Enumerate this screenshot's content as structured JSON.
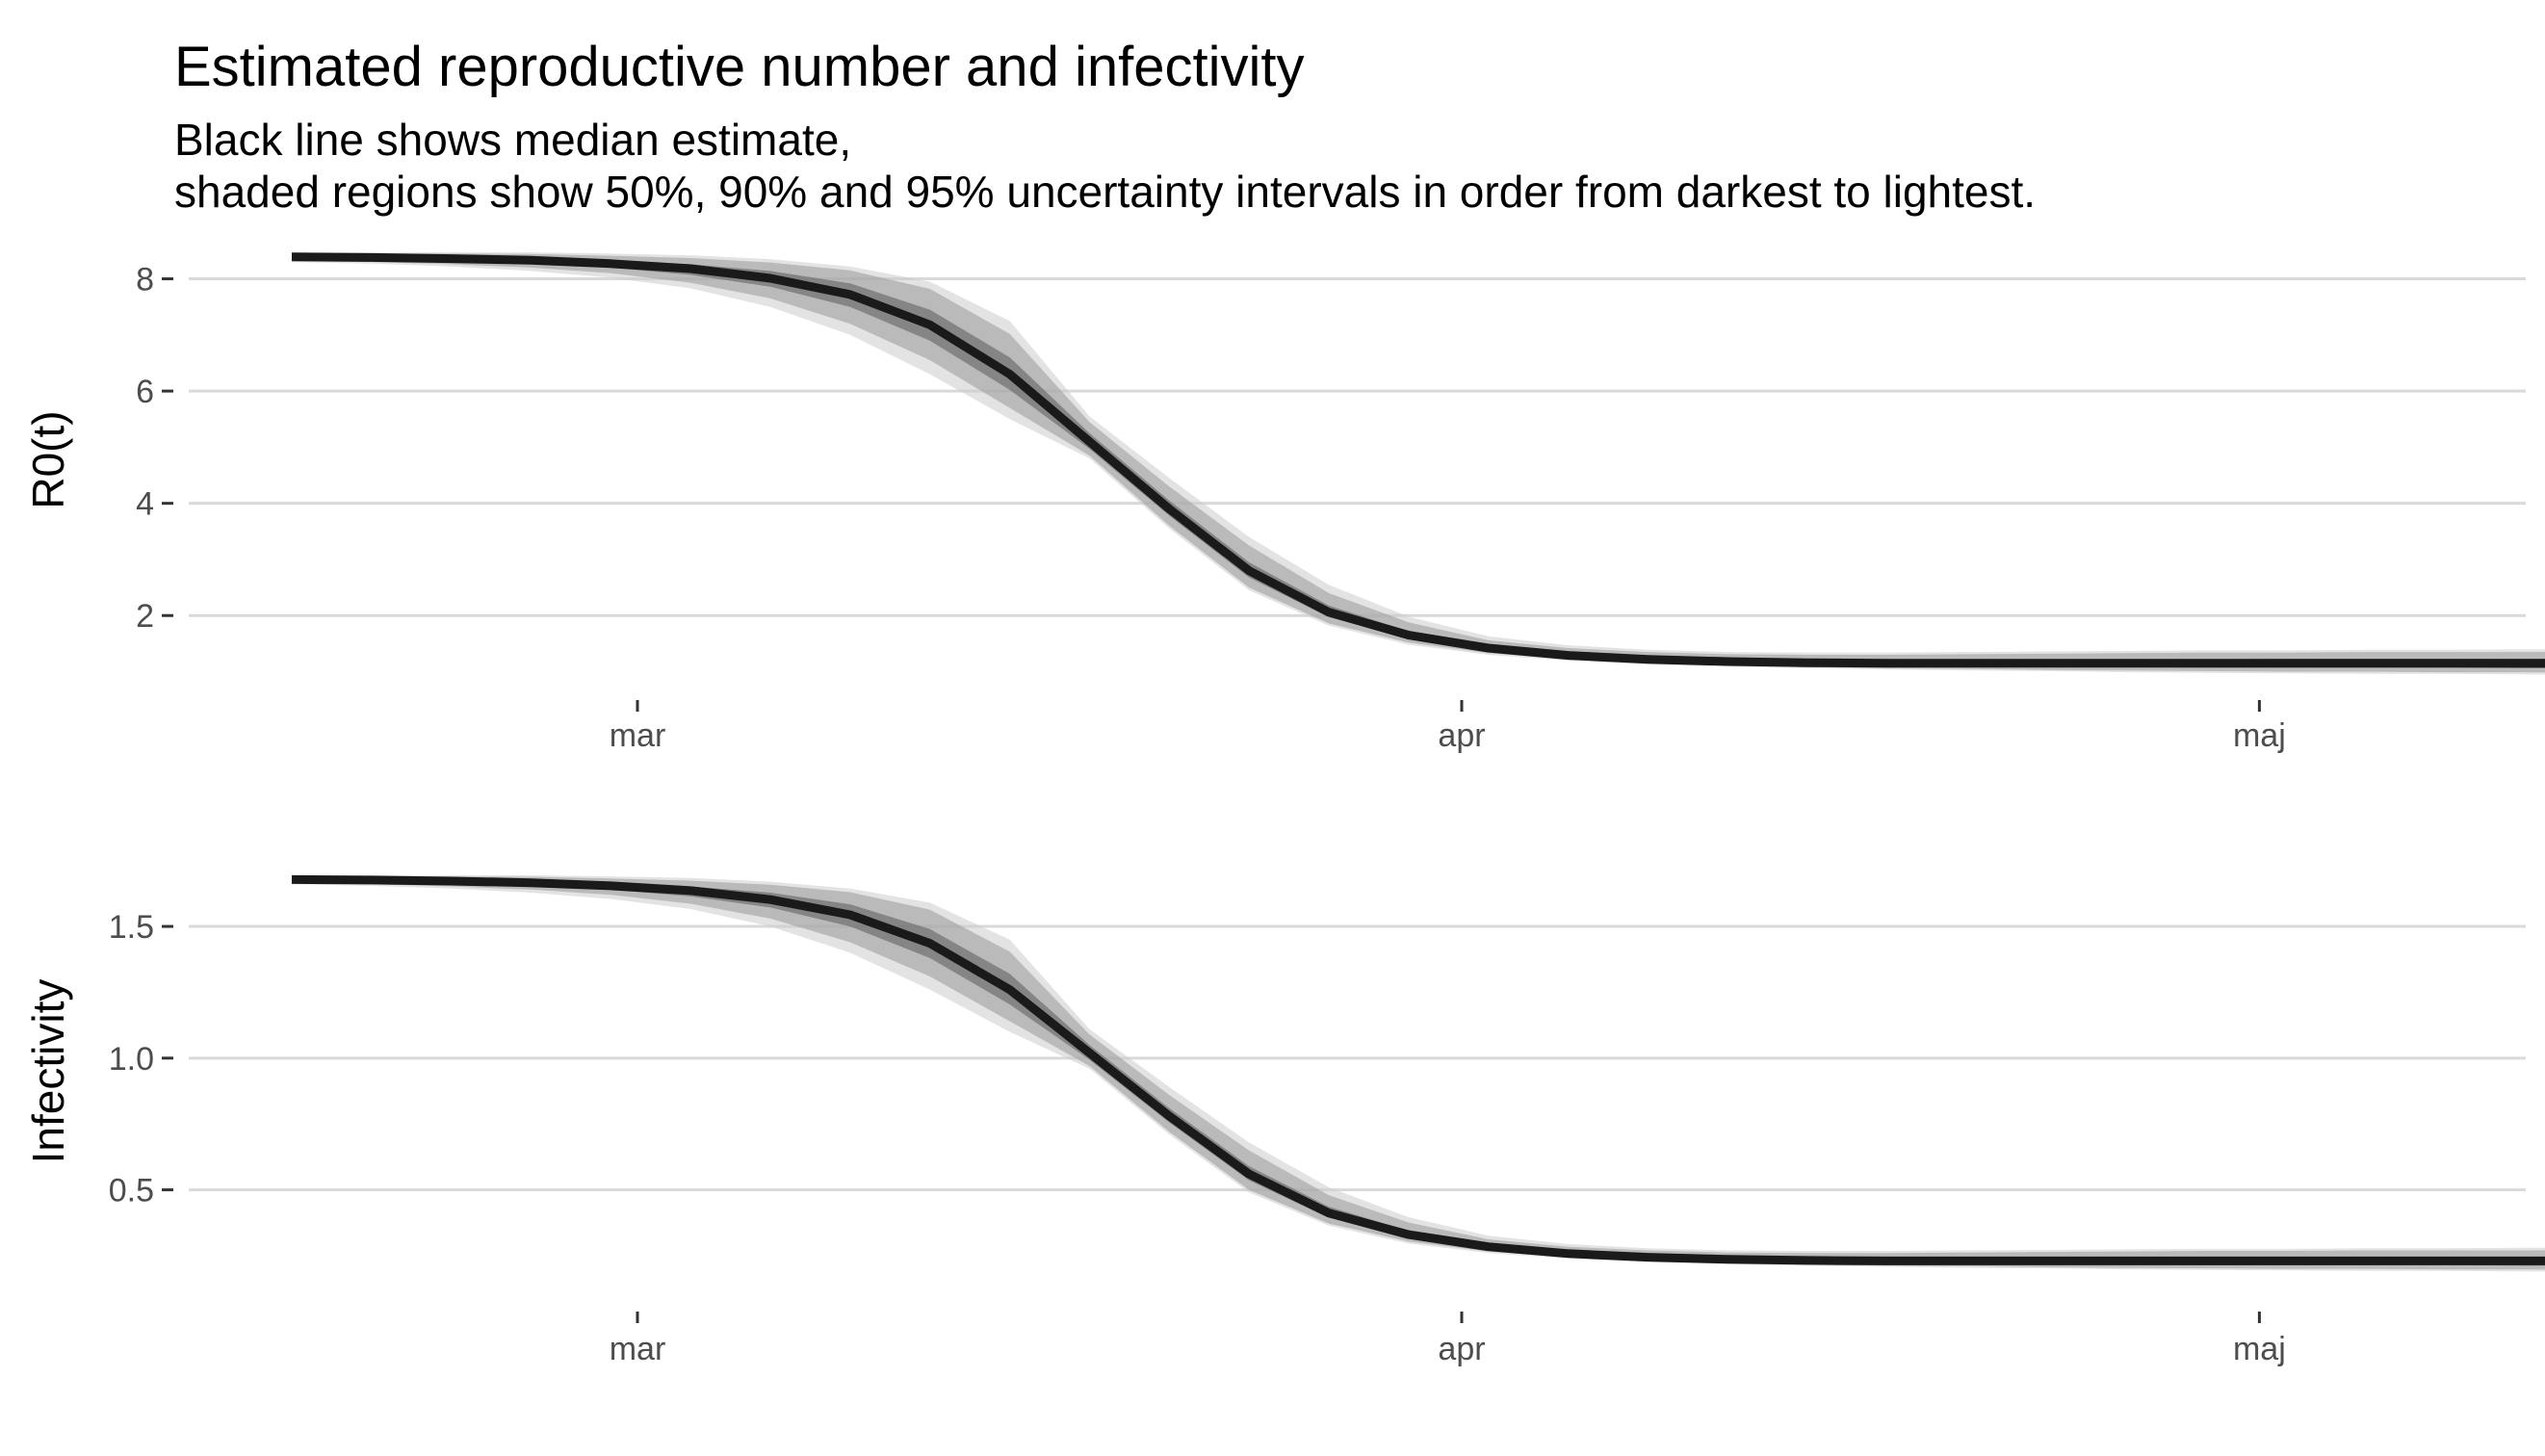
{
  "chart_data": {
    "title": "Estimated reproductive number and infectivity",
    "subtitle": [
      "Black line shows median estimate,",
      "shaded regions show 50%, 90% and 95% uncertainty intervals in order from darkest to lightest."
    ],
    "type": "area",
    "colors": {
      "median": "#1a1a1a",
      "band_50": "#595959",
      "band_90": "#999999",
      "band_95": "#cccccc",
      "grid": "#d9d9d9",
      "tick_text": "#4d4d4d"
    },
    "x_ticks": [
      "mar",
      "apr",
      "maj"
    ],
    "grid": true,
    "panels": [
      {
        "ylabel": "R0(t)",
        "yticks": [
          2,
          4,
          6,
          8
        ],
        "ylim": [
          0.7,
          8.85
        ],
        "x_day": [
          -13,
          -10,
          -7,
          -4,
          -1,
          2,
          5,
          8,
          11,
          14,
          17,
          20,
          23,
          26,
          29,
          32,
          35,
          38,
          41,
          44,
          47,
          50,
          53,
          56,
          59,
          62,
          65,
          68,
          71,
          74,
          77,
          80,
          83,
          86,
          89,
          92,
          95,
          98,
          101,
          104
        ],
        "median": [
          8.39,
          8.38,
          8.36,
          8.33,
          8.27,
          8.18,
          8.01,
          7.72,
          7.18,
          6.3,
          5.1,
          3.9,
          2.8,
          2.06,
          1.65,
          1.42,
          1.29,
          1.22,
          1.18,
          1.16,
          1.15,
          1.15,
          1.15,
          1.15,
          1.15,
          1.15,
          1.15,
          1.15,
          1.15,
          1.15,
          1.15,
          1.15,
          1.15,
          1.15,
          1.15,
          1.15,
          1.15,
          1.15,
          1.15,
          1.15
        ],
        "band_50_lo": [
          8.36,
          8.35,
          8.32,
          8.28,
          8.2,
          8.07,
          7.86,
          7.5,
          6.9,
          6.02,
          4.97,
          3.78,
          2.68,
          1.97,
          1.6,
          1.38,
          1.26,
          1.19,
          1.15,
          1.13,
          1.11,
          1.1,
          1.09,
          1.08,
          1.07,
          1.07,
          1.07,
          1.07,
          1.06,
          1.06,
          1.06,
          1.06,
          1.06,
          1.06,
          1.06,
          1.05,
          1.05,
          1.05,
          1.05,
          1.05
        ],
        "band_50_hi": [
          8.42,
          8.41,
          8.4,
          8.38,
          8.33,
          8.26,
          8.14,
          7.92,
          7.45,
          6.6,
          5.25,
          4.05,
          2.95,
          2.18,
          1.72,
          1.46,
          1.33,
          1.26,
          1.22,
          1.2,
          1.2,
          1.21,
          1.21,
          1.22,
          1.22,
          1.23,
          1.23,
          1.23,
          1.23,
          1.24,
          1.24,
          1.24,
          1.24,
          1.24,
          1.24,
          1.24,
          1.24,
          1.24,
          1.24,
          1.24
        ],
        "band_90_lo": [
          8.32,
          8.3,
          8.26,
          8.2,
          8.1,
          7.93,
          7.65,
          7.2,
          6.55,
          5.7,
          4.85,
          3.6,
          2.5,
          1.86,
          1.52,
          1.33,
          1.22,
          1.15,
          1.11,
          1.08,
          1.06,
          1.05,
          1.03,
          1.02,
          1.01,
          1.0,
          1.0,
          0.99,
          0.99,
          0.98,
          0.98,
          0.98,
          0.97,
          0.97,
          0.97,
          0.97,
          0.96,
          0.96,
          0.96,
          0.96
        ],
        "band_90_hi": [
          8.45,
          8.45,
          8.45,
          8.44,
          8.41,
          8.37,
          8.29,
          8.15,
          7.82,
          7.02,
          5.45,
          4.3,
          3.25,
          2.4,
          1.88,
          1.56,
          1.42,
          1.35,
          1.31,
          1.3,
          1.3,
          1.31,
          1.32,
          1.33,
          1.34,
          1.34,
          1.35,
          1.35,
          1.35,
          1.36,
          1.36,
          1.36,
          1.36,
          1.36,
          1.36,
          1.37,
          1.37,
          1.37,
          1.37,
          1.37
        ],
        "band_95_lo": [
          8.3,
          8.27,
          8.22,
          8.14,
          8.02,
          7.83,
          7.5,
          7.0,
          6.3,
          5.5,
          4.8,
          3.55,
          2.45,
          1.82,
          1.48,
          1.3,
          1.2,
          1.13,
          1.09,
          1.06,
          1.04,
          1.02,
          1.01,
          0.99,
          0.98,
          0.97,
          0.96,
          0.96,
          0.95,
          0.95,
          0.95,
          0.94,
          0.94,
          0.94,
          0.94,
          0.93,
          0.93,
          0.93,
          0.93,
          0.93
        ],
        "band_95_hi": [
          8.47,
          8.47,
          8.47,
          8.47,
          8.45,
          8.42,
          8.35,
          8.22,
          7.95,
          7.25,
          5.55,
          4.45,
          3.4,
          2.55,
          1.98,
          1.63,
          1.47,
          1.39,
          1.35,
          1.34,
          1.34,
          1.35,
          1.36,
          1.37,
          1.38,
          1.38,
          1.39,
          1.39,
          1.4,
          1.4,
          1.4,
          1.4,
          1.4,
          1.41,
          1.41,
          1.41,
          1.41,
          1.41,
          1.41,
          1.41
        ]
      },
      {
        "ylabel": "Infectivity",
        "yticks": [
          0.5,
          1.0,
          1.5
        ],
        "ytick_labels": [
          "0.5",
          "1.0",
          "1.5"
        ],
        "ylim": [
          0.1,
          1.8
        ],
        "x_day": [
          -13,
          -10,
          -7,
          -4,
          -1,
          2,
          5,
          8,
          11,
          14,
          17,
          20,
          23,
          26,
          29,
          32,
          35,
          38,
          41,
          44,
          47,
          50,
          53,
          56,
          59,
          62,
          65,
          68,
          71,
          74,
          77,
          80,
          83,
          86,
          89,
          92,
          95,
          98,
          101,
          104
        ],
        "median": [
          1.678,
          1.676,
          1.672,
          1.666,
          1.654,
          1.636,
          1.602,
          1.544,
          1.436,
          1.26,
          1.02,
          0.78,
          0.56,
          0.412,
          0.33,
          0.284,
          0.258,
          0.244,
          0.236,
          0.232,
          0.23,
          0.23,
          0.23,
          0.23,
          0.23,
          0.23,
          0.23,
          0.23,
          0.23,
          0.23,
          0.23,
          0.23,
          0.23,
          0.23,
          0.23,
          0.23,
          0.23,
          0.23,
          0.23,
          0.23
        ],
        "band_50_lo": [
          1.672,
          1.67,
          1.664,
          1.656,
          1.64,
          1.614,
          1.572,
          1.5,
          1.38,
          1.204,
          0.994,
          0.756,
          0.536,
          0.394,
          0.32,
          0.276,
          0.252,
          0.238,
          0.23,
          0.226,
          0.222,
          0.22,
          0.218,
          0.216,
          0.214,
          0.214,
          0.214,
          0.214,
          0.212,
          0.212,
          0.212,
          0.212,
          0.212,
          0.212,
          0.212,
          0.21,
          0.21,
          0.21,
          0.21,
          0.21
        ],
        "band_50_hi": [
          1.684,
          1.682,
          1.68,
          1.676,
          1.666,
          1.652,
          1.628,
          1.584,
          1.49,
          1.32,
          1.05,
          0.81,
          0.59,
          0.436,
          0.344,
          0.292,
          0.266,
          0.252,
          0.244,
          0.24,
          0.24,
          0.242,
          0.242,
          0.244,
          0.244,
          0.246,
          0.246,
          0.246,
          0.246,
          0.248,
          0.248,
          0.248,
          0.248,
          0.248,
          0.248,
          0.248,
          0.248,
          0.248,
          0.248,
          0.248
        ],
        "band_90_lo": [
          1.664,
          1.66,
          1.652,
          1.64,
          1.62,
          1.586,
          1.53,
          1.44,
          1.31,
          1.14,
          0.97,
          0.72,
          0.5,
          0.372,
          0.304,
          0.266,
          0.244,
          0.23,
          0.222,
          0.216,
          0.212,
          0.21,
          0.206,
          0.204,
          0.202,
          0.2,
          0.2,
          0.198,
          0.198,
          0.196,
          0.196,
          0.196,
          0.194,
          0.194,
          0.194,
          0.194,
          0.192,
          0.192,
          0.192,
          0.192
        ],
        "band_90_hi": [
          1.69,
          1.69,
          1.69,
          1.688,
          1.682,
          1.674,
          1.658,
          1.63,
          1.564,
          1.404,
          1.09,
          0.86,
          0.65,
          0.48,
          0.376,
          0.312,
          0.284,
          0.27,
          0.262,
          0.26,
          0.26,
          0.262,
          0.264,
          0.266,
          0.268,
          0.268,
          0.27,
          0.27,
          0.27,
          0.272,
          0.272,
          0.272,
          0.272,
          0.272,
          0.272,
          0.274,
          0.274,
          0.274,
          0.274,
          0.274
        ],
        "band_95_lo": [
          1.66,
          1.654,
          1.644,
          1.628,
          1.604,
          1.566,
          1.5,
          1.4,
          1.26,
          1.1,
          0.96,
          0.71,
          0.49,
          0.364,
          0.296,
          0.26,
          0.24,
          0.226,
          0.218,
          0.212,
          0.208,
          0.204,
          0.202,
          0.198,
          0.196,
          0.194,
          0.192,
          0.192,
          0.19,
          0.19,
          0.19,
          0.188,
          0.188,
          0.188,
          0.188,
          0.186,
          0.186,
          0.186,
          0.186,
          0.186
        ],
        "band_95_hi": [
          1.694,
          1.694,
          1.694,
          1.694,
          1.69,
          1.684,
          1.67,
          1.644,
          1.59,
          1.45,
          1.11,
          0.89,
          0.68,
          0.51,
          0.396,
          0.326,
          0.294,
          0.278,
          0.27,
          0.268,
          0.268,
          0.27,
          0.272,
          0.274,
          0.276,
          0.276,
          0.278,
          0.278,
          0.28,
          0.28,
          0.28,
          0.28,
          0.28,
          0.282,
          0.282,
          0.282,
          0.282,
          0.282,
          0.282,
          0.282
        ]
      }
    ]
  }
}
